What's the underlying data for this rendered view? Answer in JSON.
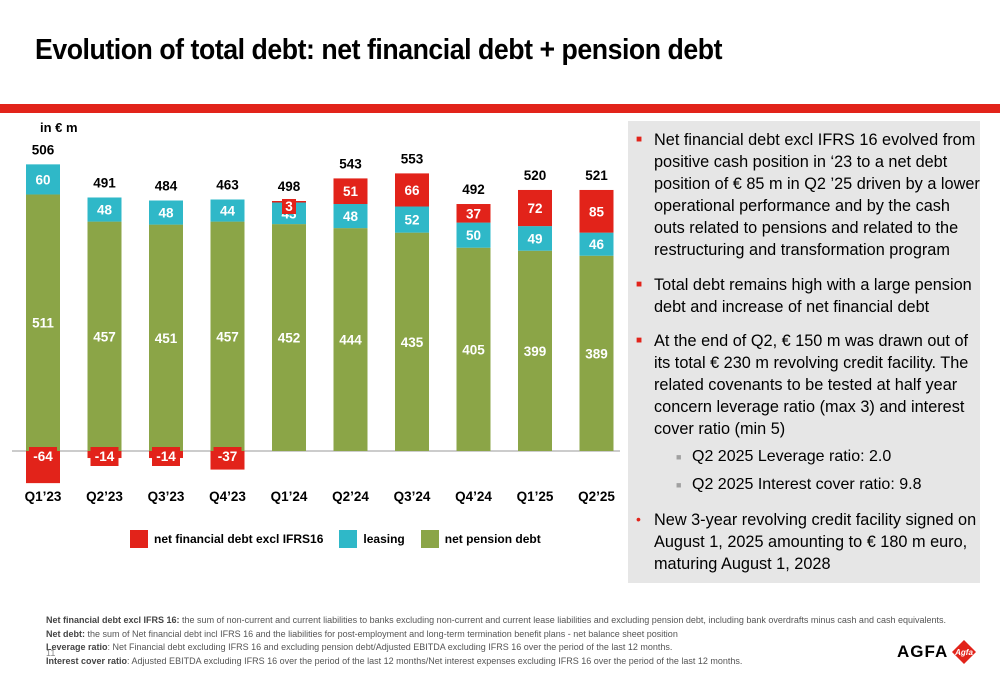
{
  "title": "Evolution of total debt: net financial debt + pension debt",
  "unit_label": "in € m",
  "colors": {
    "accent": "#e2231a",
    "leasing": "#2fb8c8",
    "pension": "#8ba547",
    "panel": "#e6e6e6"
  },
  "chart_data": {
    "type": "bar",
    "stacked": true,
    "categories": [
      "Q1’23",
      "Q2’23",
      "Q3’23",
      "Q4’23",
      "Q1’24",
      "Q2’24",
      "Q3’24",
      "Q4’24",
      "Q1’25",
      "Q2’25"
    ],
    "series": [
      {
        "name": "net financial debt excl IFRS16",
        "color": "#e2231a",
        "values": [
          -64,
          -14,
          -14,
          -37,
          3,
          51,
          66,
          37,
          72,
          85
        ]
      },
      {
        "name": "leasing",
        "color": "#2fb8c8",
        "values": [
          60,
          48,
          48,
          44,
          43,
          48,
          52,
          50,
          49,
          46
        ]
      },
      {
        "name": "net pension debt",
        "color": "#8ba547",
        "values": [
          511,
          457,
          451,
          457,
          452,
          444,
          435,
          405,
          399,
          389
        ]
      }
    ],
    "totals": [
      506,
      491,
      484,
      463,
      498,
      543,
      553,
      492,
      520,
      521
    ],
    "ylim": [
      -70,
      600
    ]
  },
  "bullets": [
    "Net financial debt excl IFRS 16 evolved from positive cash position in ‘23 to a net debt position of € 85 m in Q2 ’25 driven by a lower operational performance and by the cash outs related to pensions and related to the restructuring and transformation program",
    "Total debt remains high with a large pension debt and increase of net financial debt",
    "At the end of Q2, € 150 m was drawn out of its total € 230 m revolving credit facility. The related covenants to be tested at half year concern leverage ratio (max 3) and interest cover ratio (min 5)"
  ],
  "sub_bullets": [
    "Q2 2025 Leverage ratio: 2.0",
    "Q2 2025 Interest cover ratio: 9.8"
  ],
  "last_bullet": "New 3-year revolving credit facility signed on August 1, 2025 amounting to € 180 m euro, maturing August 1, 2028",
  "footnotes": [
    {
      "term": "Net financial debt excl IFRS 16:",
      "text": " the sum of non-current and current liabilities to banks excluding non-current and current lease liabilities and excluding pension debt, including bank overdrafts minus cash and cash equivalents."
    },
    {
      "term": "Net debt:",
      "text": " the sum of Net financial debt incl IFRS 16 and the liabilities for post-employment and long-term termination benefit plans - net balance sheet position"
    },
    {
      "term": "Leverage ratio",
      "text": ": Net Financial debt excluding IFRS 16 and excluding pension debt/Adjusted EBITDA excluding IFRS 16 over the period of the last 12 months."
    },
    {
      "term": "Interest cover ratio",
      "text": ": Adjusted EBITDA excluding IFRS 16 over the period of the last 12 months/Net interest expenses excluding IFRS 16 over the period of the last 12 months."
    }
  ],
  "page_number": "11",
  "logo": {
    "text": "AGFA",
    "badge": "Agfa"
  }
}
